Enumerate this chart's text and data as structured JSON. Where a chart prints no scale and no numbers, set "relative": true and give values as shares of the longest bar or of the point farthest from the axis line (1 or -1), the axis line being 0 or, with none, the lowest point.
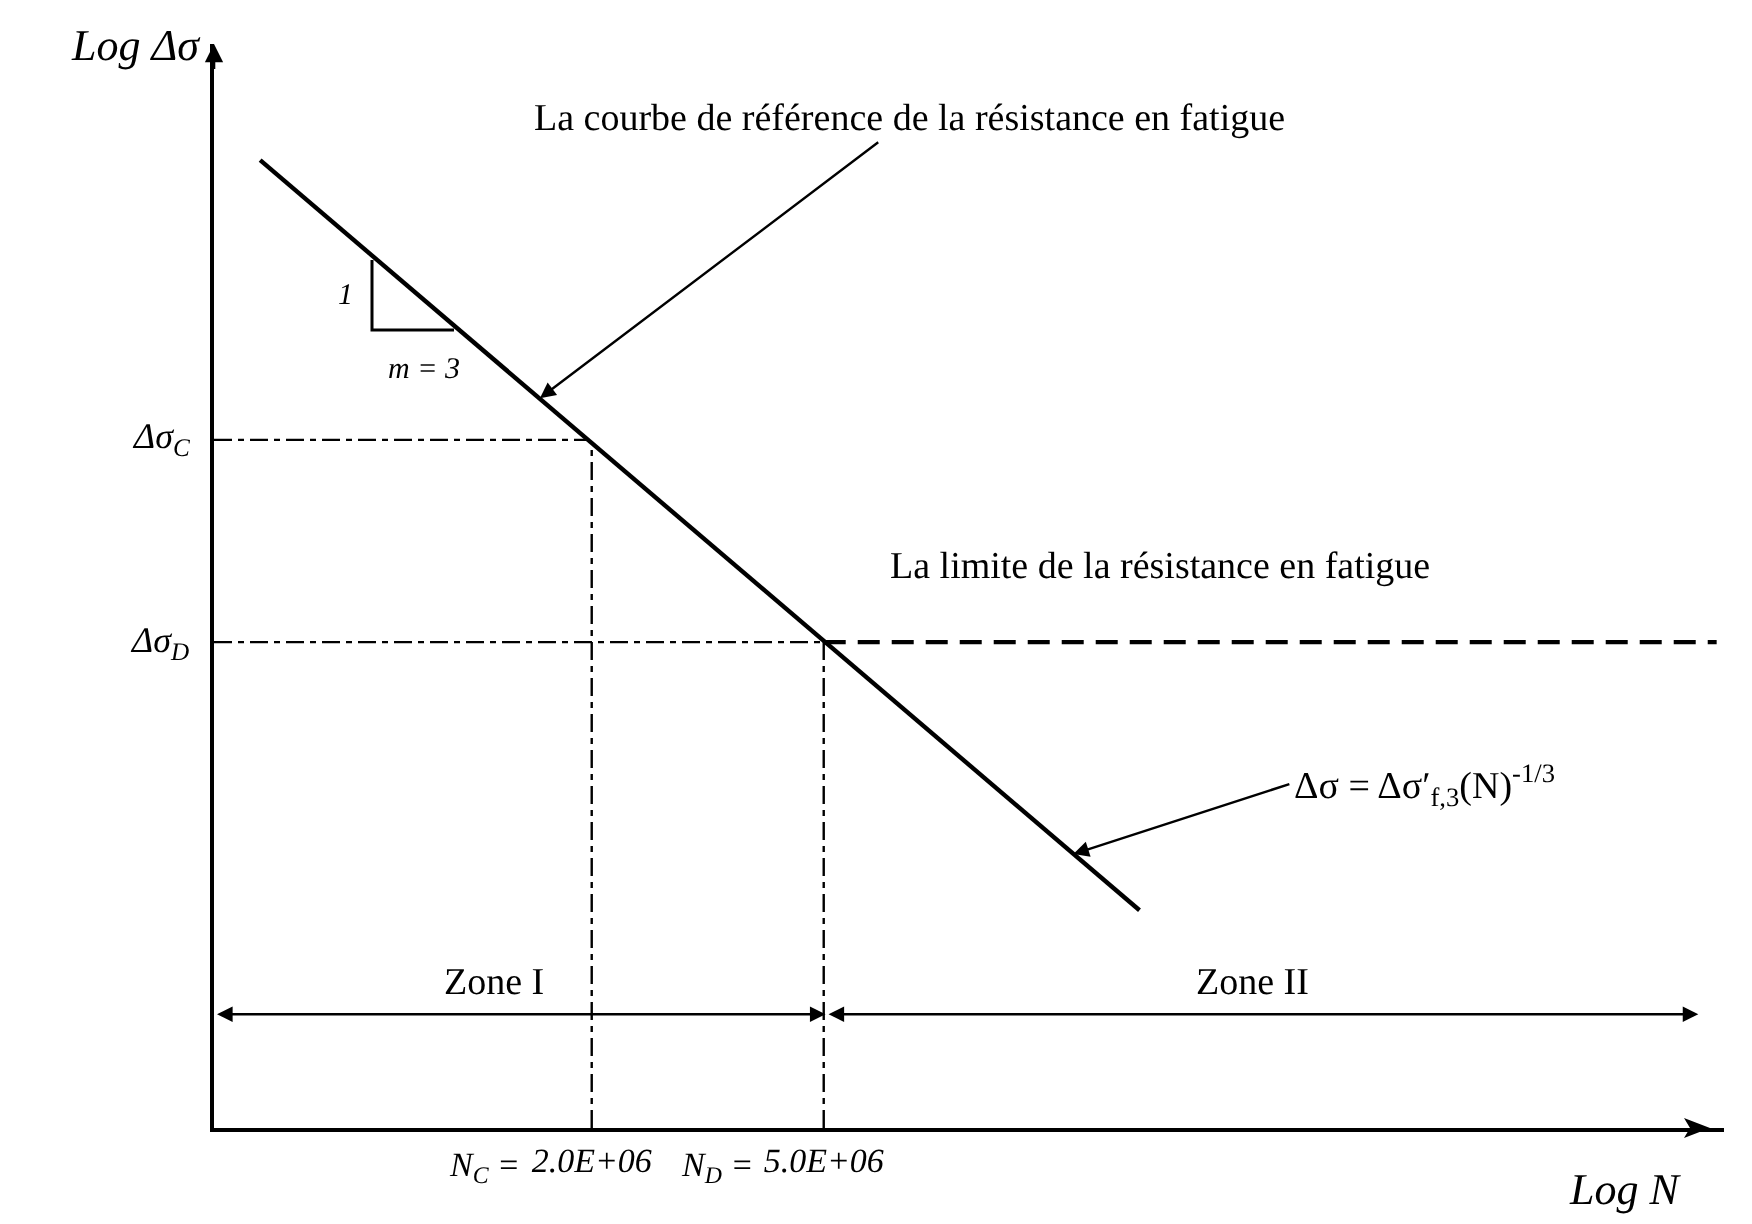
{
  "chart_data": {
    "type": "line",
    "xlabel": "Log N",
    "ylabel": "Log Δσ",
    "log": "x",
    "relative": true,
    "xlim": [
      450000,
      175000000
    ],
    "xticks": [
      {
        "value": 2000000,
        "label": "2.0E+06"
      },
      {
        "value": 5000000,
        "label": "5.0E+06"
      }
    ],
    "series": [
      {
        "color": "#000000",
        "x": [
          540000,
          17400000
        ],
        "values": [
          1,
          0.225
        ],
        "line_style": "solid"
      },
      {
        "color": "#000000",
        "x": [
          5000000,
          170000000
        ],
        "values": [
          0.502,
          0.502
        ],
        "line_style": "dashed"
      }
    ],
    "ref_lines": [
      {
        "axis": "y",
        "value": 0.711,
        "label": "Δσ$_{C}$"
      },
      {
        "axis": "y",
        "value": 0.502,
        "label": "Δσ$_{D}$"
      },
      {
        "axis": "x",
        "value": 2000000
      },
      {
        "axis": "x",
        "value": 5000000
      }
    ],
    "annotations": [
      {
        "text": "La courbe de référence de la résistance en fatigue",
        "x": 1630000,
        "y": 0.754
      },
      {
        "text": "La limite de la résistance en fatigue",
        "x": 18800000,
        "y": 0.502
      },
      {
        "text": "Δσ = Δσ′$_{f,3}$(N)$^{-1/3}$",
        "x": 13400000,
        "y": 0.283
      },
      "1",
      "m = 3",
      "Zone I",
      "Zone II",
      "N$_{C}$ =",
      "N$_{D}$ ="
    ]
  }
}
